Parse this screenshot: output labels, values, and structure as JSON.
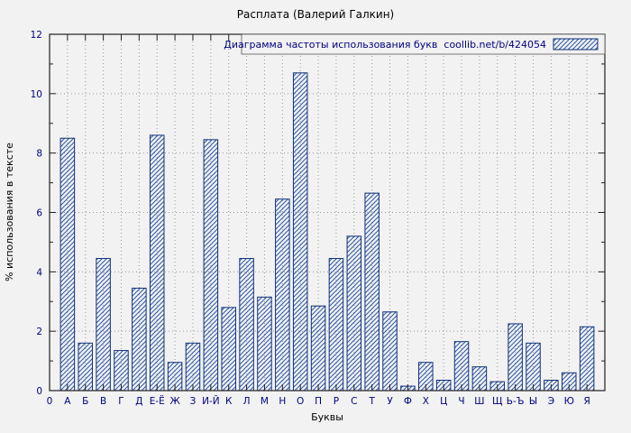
{
  "chart_data": {
    "type": "bar",
    "title": "Расплата (Валерий Галкин)",
    "legend_label": "Диаграмма частоты использования букв  coollib.net/b/424054",
    "xlabel": "Буквы",
    "ylabel": "% использования в тексте",
    "x_origin_label": "0",
    "ylim": [
      0,
      12
    ],
    "yticks": [
      0,
      2,
      4,
      6,
      8,
      10,
      12
    ],
    "grid": true,
    "legend_position": "top-right",
    "bar_edge_color": "#10307a",
    "bar_hatch_color": "#2a56a8",
    "background_color": "#f2f2f2",
    "categories": [
      "А",
      "Б",
      "В",
      "Г",
      "Д",
      "Е-Ё",
      "Ж",
      "З",
      "И-Й",
      "К",
      "Л",
      "М",
      "Н",
      "О",
      "П",
      "Р",
      "С",
      "Т",
      "У",
      "Ф",
      "Х",
      "Ц",
      "Ч",
      "Ш",
      "Щ",
      "Ь-Ъ",
      "Ы",
      "Э",
      "Ю",
      "Я"
    ],
    "values": [
      8.5,
      1.6,
      4.45,
      1.35,
      3.45,
      8.6,
      0.95,
      1.6,
      8.45,
      2.8,
      4.45,
      3.15,
      6.45,
      10.7,
      2.85,
      4.45,
      5.2,
      6.65,
      2.65,
      0.15,
      0.95,
      0.35,
      1.65,
      0.8,
      0.3,
      2.25,
      1.6,
      0.35,
      0.6,
      2.15
    ]
  }
}
